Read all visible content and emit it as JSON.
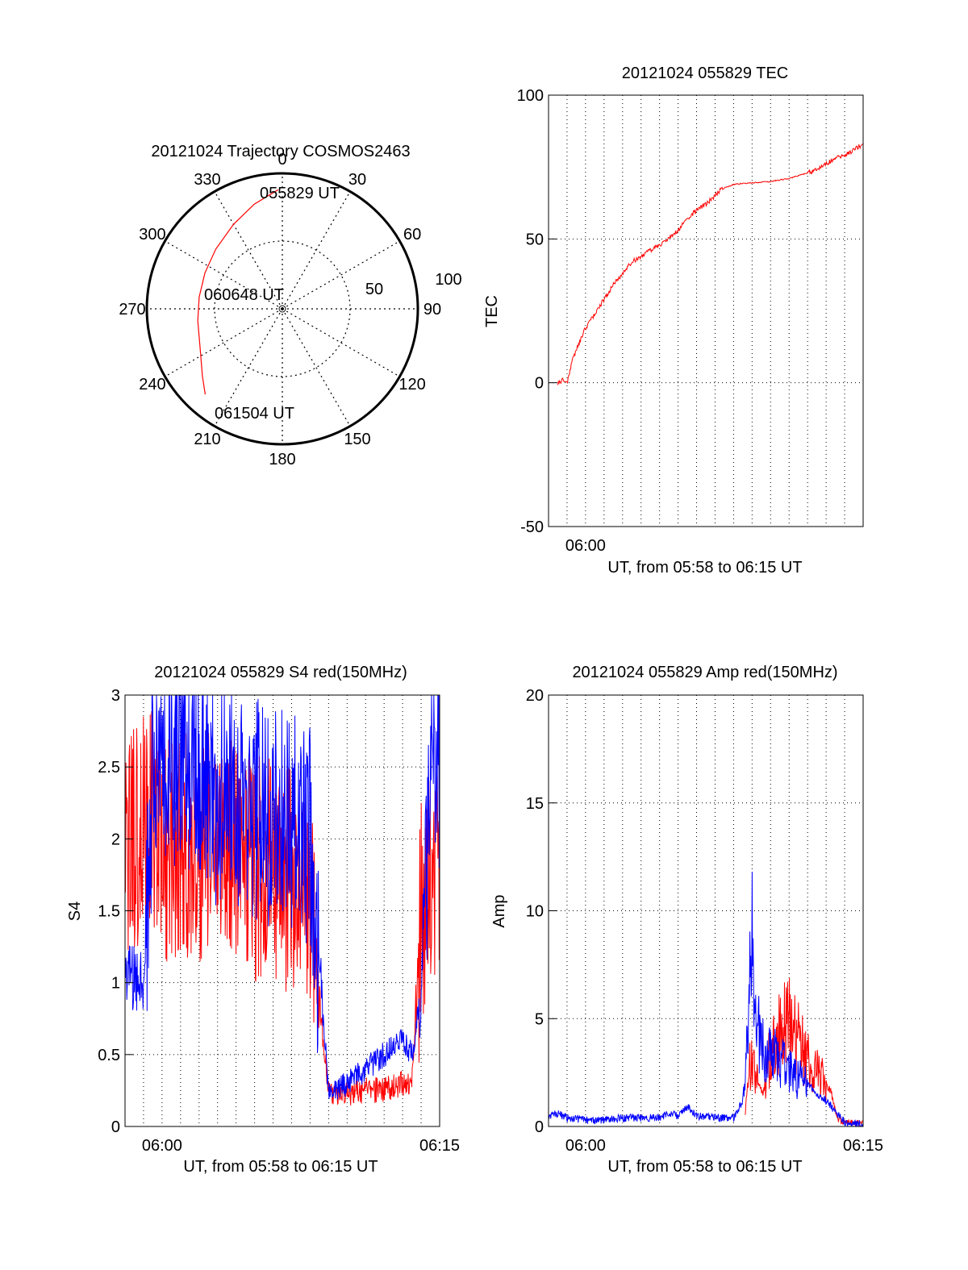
{
  "chart_data": [
    {
      "type": "polar",
      "title": "20121024 Trajectory COSMOS2463",
      "azimuth_labels": [
        "0",
        "30",
        "60",
        "90",
        "120",
        "150",
        "180",
        "210",
        "240",
        "270",
        "300",
        "330"
      ],
      "radial_labels": [
        "50",
        "100"
      ],
      "rlim": [
        0,
        100
      ],
      "grid": true,
      "annotations": [
        "055829 UT",
        "060648 UT",
        "061504 UT"
      ],
      "series": [
        {
          "color": "#ff0000",
          "points": [
            {
              "az": 358,
              "r": 88
            },
            {
              "az": 345,
              "r": 80
            },
            {
              "az": 330,
              "r": 72
            },
            {
              "az": 312,
              "r": 66
            },
            {
              "az": 295,
              "r": 63
            },
            {
              "az": 278,
              "r": 62
            },
            {
              "az": 262,
              "r": 63
            },
            {
              "az": 245,
              "r": 67
            },
            {
              "az": 230,
              "r": 77
            },
            {
              "az": 222,
              "r": 85
            }
          ]
        }
      ]
    },
    {
      "type": "line",
      "title": "20121024 055829 TEC",
      "xlabel": "UT, from 05:58 to 06:15 UT",
      "ylabel": "TEC",
      "xtick_labels": [
        "06:00"
      ],
      "ytick_labels": [
        "-50",
        "0",
        "50",
        "100"
      ],
      "ylim": [
        -50,
        100
      ],
      "grid": true,
      "series": [
        {
          "color": "#ff0000",
          "x": [
            0.5,
            0.8,
            1.0,
            1.3,
            1.6,
            2.0,
            2.5,
            3.0,
            3.5,
            4.0,
            4.5,
            5.0,
            5.5,
            6.0,
            6.5,
            7.0,
            7.5,
            8.0,
            8.5,
            9.0,
            9.3,
            9.6,
            10.0,
            11.0,
            12.0,
            13.0,
            14.0,
            14.5,
            15.0,
            15.5,
            16.0,
            16.5,
            17.0
          ],
          "y": [
            0,
            1,
            0,
            8,
            13,
            19,
            24,
            29,
            34,
            38,
            42,
            44,
            46,
            48,
            50,
            53,
            57,
            60,
            62,
            65,
            67,
            68,
            69,
            69.5,
            70,
            71,
            73,
            74,
            76,
            78,
            79,
            81,
            83
          ]
        }
      ]
    },
    {
      "type": "line",
      "title": "20121024 055829 S4 red(150MHz)",
      "xlabel": "UT, from 05:58 to 06:15 UT",
      "ylabel": "S4",
      "xtick_labels": [
        "06:00",
        "06:15"
      ],
      "ytick_labels": [
        "0",
        "0.5",
        "1",
        "1.5",
        "2",
        "2.5",
        "3"
      ],
      "ylim": [
        0,
        3
      ],
      "grid": true,
      "series": [
        {
          "color": "#ff0000",
          "x": [
            0,
            0.5,
            1.0,
            1.5,
            2.0,
            3.0,
            4.0,
            5.0,
            6.0,
            7.0,
            8.0,
            9.0,
            10.0,
            11.0,
            12.0,
            13.0,
            14.0,
            15.0,
            15.5,
            16.0,
            16.5,
            17.0
          ],
          "y": [
            1.8,
            2.0,
            2.1,
            2.2,
            1.9,
            2.0,
            1.9,
            2.0,
            1.9,
            1.8,
            1.8,
            1.7,
            1.5,
            0.25,
            0.22,
            0.25,
            0.25,
            0.3,
            0.3,
            1.5,
            1.8,
            1.8
          ]
        },
        {
          "color": "#0000ff",
          "x": [
            0,
            0.5,
            1.0,
            1.5,
            2.0,
            3.0,
            4.0,
            5.0,
            6.0,
            7.0,
            8.0,
            9.0,
            10.0,
            11.0,
            12.0,
            13.0,
            14.0,
            15.0,
            15.5,
            16.0,
            16.5,
            17.0
          ],
          "y": [
            1.1,
            1.0,
            1.0,
            2.4,
            2.5,
            2.6,
            2.5,
            2.3,
            2.3,
            2.2,
            2.1,
            2.1,
            2.0,
            0.25,
            0.3,
            0.4,
            0.5,
            0.6,
            0.5,
            0.9,
            2.5,
            2.5
          ]
        }
      ]
    },
    {
      "type": "line",
      "title": "20121024 055829 Amp red(150MHz)",
      "xlabel": "UT, from 05:58 to 06:15 UT",
      "ylabel": "Amp",
      "xtick_labels": [
        "06:00",
        "06:15"
      ],
      "ytick_labels": [
        "0",
        "5",
        "10",
        "15",
        "20"
      ],
      "ylim": [
        0,
        20
      ],
      "grid": true,
      "series": [
        {
          "color": "#ff0000",
          "x": [
            10.6,
            10.8,
            11.0,
            11.3,
            11.6,
            12.0,
            12.5,
            13.0,
            13.5,
            14.0,
            14.5,
            15.0,
            15.3,
            15.6,
            16.0,
            17.0
          ],
          "y": [
            0.3,
            2.5,
            3.0,
            2.0,
            1.5,
            3.5,
            4.5,
            5.0,
            4.0,
            3.0,
            2.5,
            2.0,
            1.5,
            0.3,
            0.2,
            0.1
          ]
        },
        {
          "color": "#0000ff",
          "x": [
            0,
            0.5,
            1.0,
            2.0,
            3.0,
            4.0,
            5.0,
            6.0,
            6.5,
            7.0,
            7.5,
            8.0,
            9.0,
            10.0,
            10.5,
            10.8,
            11.0,
            11.2,
            11.5,
            12.0,
            12.5,
            13.0,
            13.5,
            14.0,
            14.5,
            15.0,
            15.5,
            16.0,
            17.0
          ],
          "y": [
            0.5,
            0.6,
            0.4,
            0.3,
            0.3,
            0.4,
            0.4,
            0.4,
            0.6,
            0.5,
            0.9,
            0.5,
            0.4,
            0.4,
            1.2,
            5.0,
            9.0,
            6.0,
            3.5,
            3.5,
            3.0,
            2.5,
            2.2,
            2.0,
            1.5,
            1.2,
            0.7,
            0.2,
            0.1
          ]
        }
      ]
    }
  ]
}
